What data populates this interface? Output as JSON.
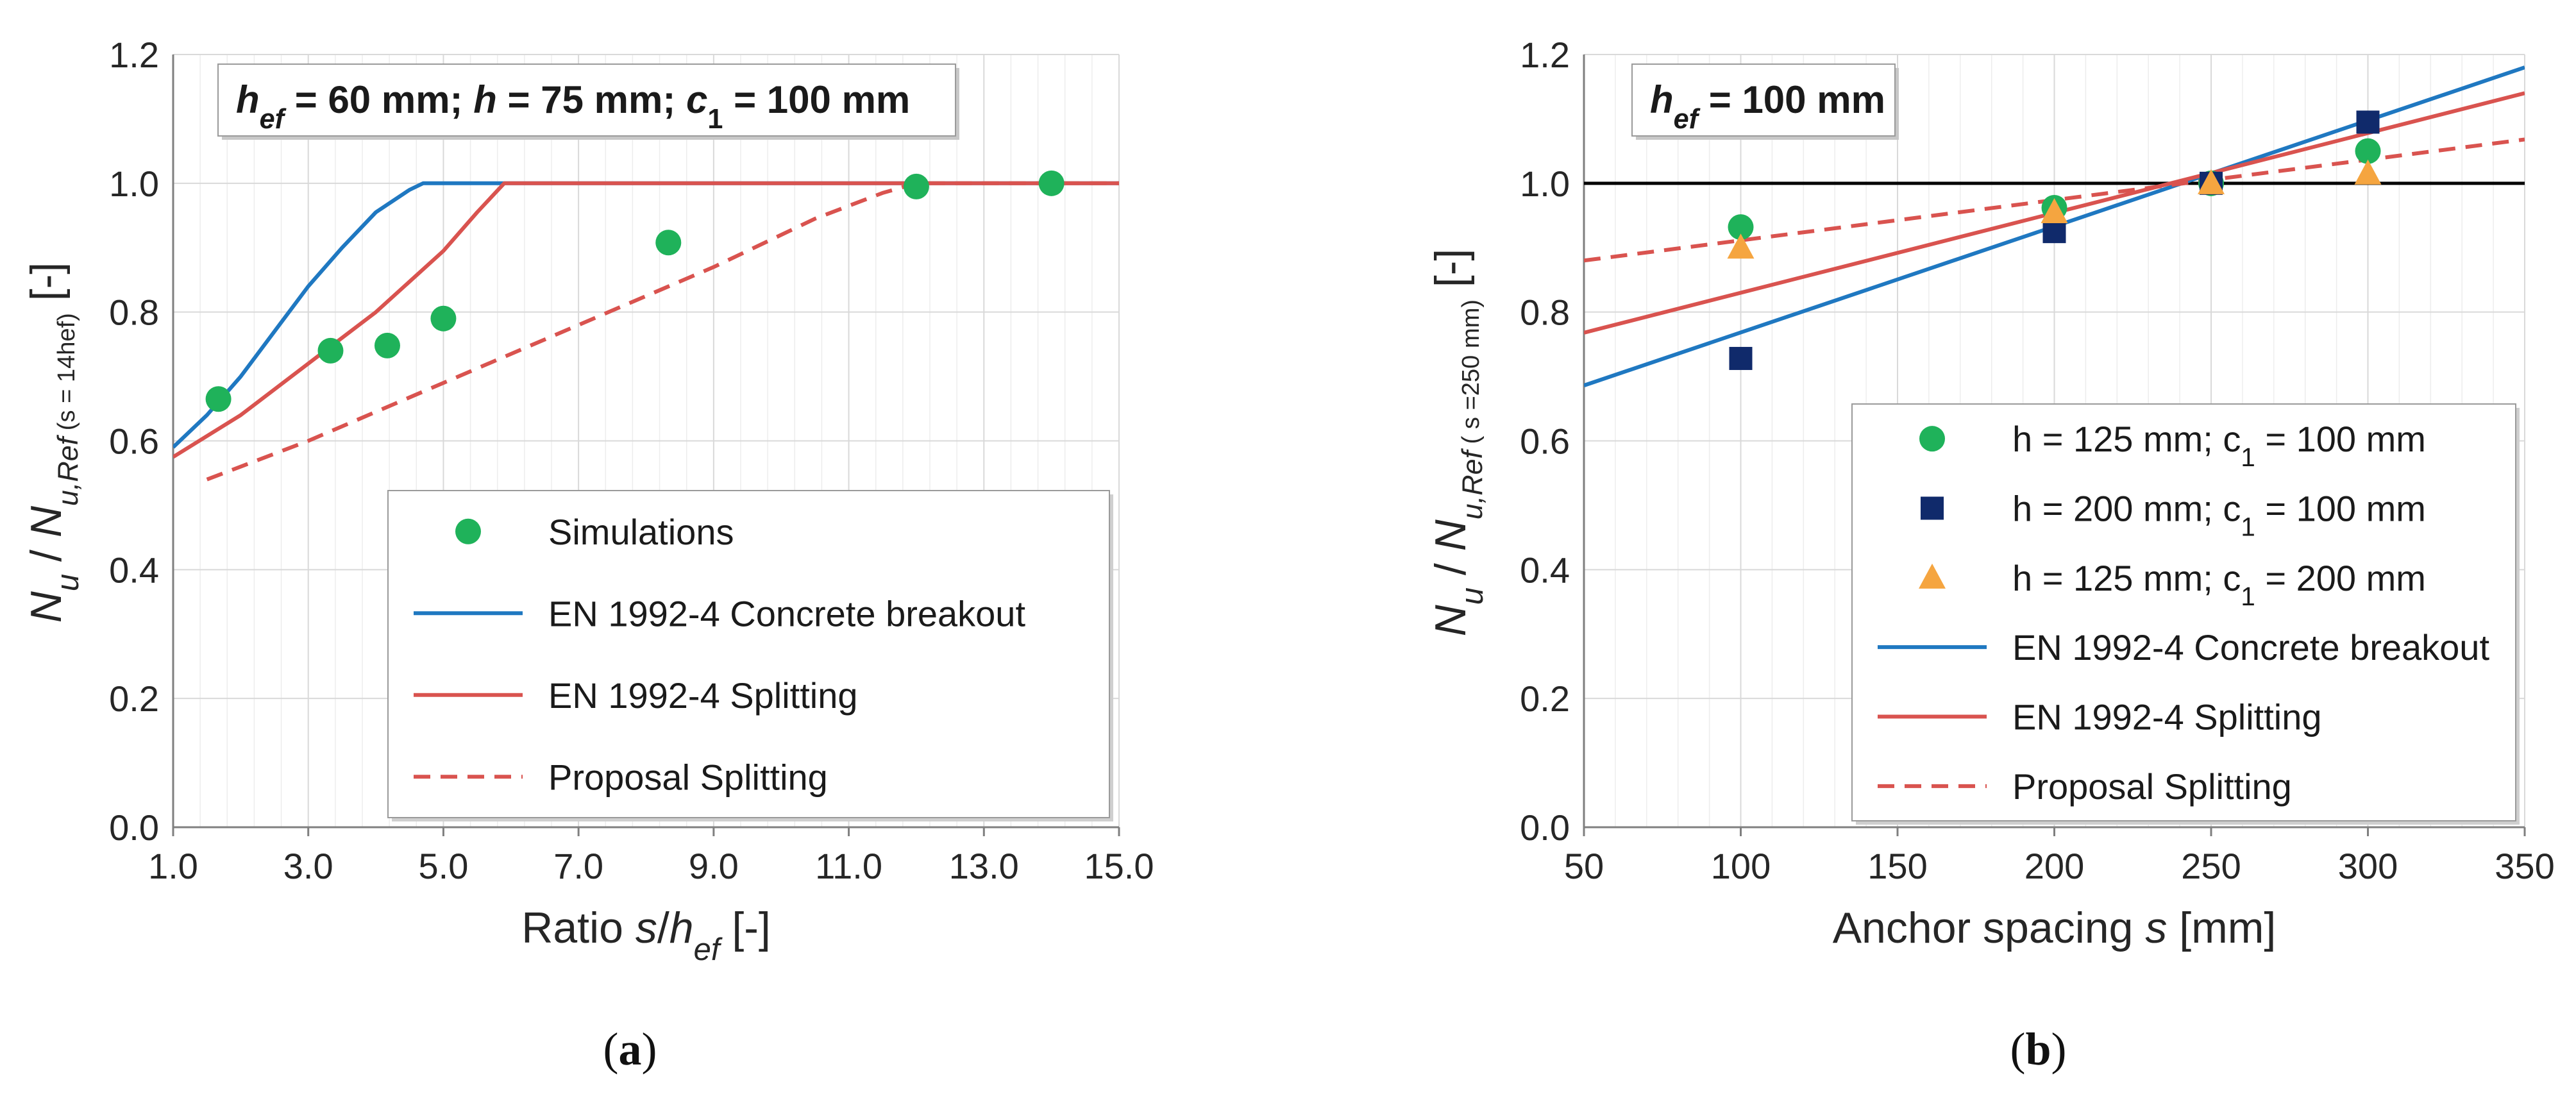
{
  "chart_data": [
    {
      "type": "line",
      "panel_label": "a",
      "annotation": {
        "h1": "h",
        "s1": "ef",
        "t1": " = 60 mm; ",
        "h2": "h",
        "t2": " = 75 mm; ",
        "h3": "c",
        "s3": "1",
        "t3": " = 100 mm"
      },
      "xlabel": {
        "pre": "Ratio ",
        "var": "s",
        "slash": "/",
        "var2": "h",
        "sub": "ef",
        "post": " [-]"
      },
      "ylabel": {
        "n": "N",
        "nsub": "u",
        "mid": " / ",
        "n2": "N",
        "n2sub": "u,Ref",
        "cond": "(s = 14hef)",
        "unit": "[-]"
      },
      "xlim": [
        1.0,
        15.0
      ],
      "ylim": [
        0.0,
        1.2
      ],
      "xticks": [
        "1.0",
        "3.0",
        "5.0",
        "7.0",
        "9.0",
        "11.0",
        "13.0",
        "15.0"
      ],
      "yticks": [
        "0.0",
        "0.2",
        "0.4",
        "0.6",
        "0.8",
        "1.0",
        "1.2"
      ],
      "legend_position": "bottom-right",
      "series": [
        {
          "name": "Simulations",
          "kind": "marker",
          "marker": "circle",
          "color": "#1fb25a",
          "points": [
            [
              1.67,
              0.665
            ],
            [
              3.33,
              0.74
            ],
            [
              4.17,
              0.748
            ],
            [
              5.0,
              0.79
            ],
            [
              8.33,
              0.908
            ],
            [
              12.0,
              0.995
            ],
            [
              14.0,
              1.0
            ]
          ]
        },
        {
          "name": "EN 1992-4 Concrete breakout",
          "kind": "line",
          "style": "solid",
          "color": "#1f78c1",
          "points": [
            [
              1.0,
              0.59
            ],
            [
              1.5,
              0.64
            ],
            [
              2.0,
              0.7
            ],
            [
              2.5,
              0.77
            ],
            [
              3.0,
              0.84
            ],
            [
              3.5,
              0.9
            ],
            [
              4.0,
              0.955
            ],
            [
              4.5,
              0.99
            ],
            [
              4.7,
              1.0
            ],
            [
              15.0,
              1.0
            ]
          ]
        },
        {
          "name": "EN 1992-4 Splitting",
          "kind": "line",
          "style": "solid",
          "color": "#d9534f",
          "points": [
            [
              1.0,
              0.575
            ],
            [
              2.0,
              0.64
            ],
            [
              3.0,
              0.72
            ],
            [
              4.0,
              0.8
            ],
            [
              5.0,
              0.895
            ],
            [
              5.5,
              0.955
            ],
            [
              5.9,
              1.0
            ],
            [
              15.0,
              1.0
            ]
          ]
        },
        {
          "name": "Proposal Splitting",
          "kind": "line",
          "style": "dashed",
          "color": "#d9534f",
          "points": [
            [
              1.5,
              0.54
            ],
            [
              3.0,
              0.6
            ],
            [
              5.0,
              0.69
            ],
            [
              7.0,
              0.78
            ],
            [
              9.0,
              0.87
            ],
            [
              10.5,
              0.945
            ],
            [
              11.5,
              0.985
            ],
            [
              12.0,
              1.0
            ],
            [
              15.0,
              1.0
            ]
          ]
        }
      ]
    },
    {
      "type": "line",
      "panel_label": "b",
      "annotation": {
        "h1": "h",
        "s1": "ef",
        "t1": " = 100 mm"
      },
      "xlabel": {
        "pre": "Anchor spacing ",
        "var": "s",
        "post": " [mm]"
      },
      "ylabel": {
        "n": "N",
        "nsub": "u",
        "mid": " / ",
        "n2": "N",
        "n2sub": "u,Ref",
        "cond": "( s =250 mm)",
        "unit": "[-]"
      },
      "xlim": [
        50,
        350
      ],
      "ylim": [
        0.0,
        1.2
      ],
      "xticks": [
        "50",
        "100",
        "150",
        "200",
        "250",
        "300",
        "350"
      ],
      "yticks": [
        "0.0",
        "0.2",
        "0.4",
        "0.6",
        "0.8",
        "1.0",
        "1.2"
      ],
      "reference_line": {
        "y": 1.0,
        "color": "#000000"
      },
      "legend_position": "bottom-right",
      "series": [
        {
          "name": "h = 125 mm; c1 = 100 mm",
          "label_pre": "h = 125 mm; c",
          "label_sub": "1",
          "label_post": " = 100 mm",
          "kind": "marker",
          "marker": "circle",
          "color": "#1fb25a",
          "points": [
            [
              100,
              0.932
            ],
            [
              200,
              0.962
            ],
            [
              250,
              1.0
            ],
            [
              300,
              1.05
            ]
          ]
        },
        {
          "name": "h = 200 mm; c1 = 100 mm",
          "label_pre": "h = 200 mm; c",
          "label_sub": "1",
          "label_post": " = 100 mm",
          "kind": "marker",
          "marker": "square",
          "color": "#102a6b",
          "points": [
            [
              100,
              0.728
            ],
            [
              200,
              0.925
            ],
            [
              250,
              1.0
            ],
            [
              300,
              1.095
            ]
          ]
        },
        {
          "name": "h = 125 mm; c1 = 200 mm",
          "label_pre": "h = 125 mm; c",
          "label_sub": "1",
          "label_post": " = 200 mm",
          "kind": "marker",
          "marker": "triangle",
          "color": "#f5a540",
          "points": [
            [
              100,
              0.9
            ],
            [
              200,
              0.955
            ],
            [
              250,
              1.0
            ],
            [
              300,
              1.015
            ]
          ]
        },
        {
          "name": "EN 1992-4 Concrete breakout",
          "kind": "line",
          "style": "solid",
          "color": "#1f78c1",
          "points": [
            [
              50,
              0.686
            ],
            [
              350,
              1.18
            ]
          ]
        },
        {
          "name": "EN 1992-4 Splitting",
          "kind": "line",
          "style": "solid",
          "color": "#d9534f",
          "points": [
            [
              50,
              0.768
            ],
            [
              350,
              1.14
            ]
          ]
        },
        {
          "name": "Proposal Splitting",
          "kind": "line",
          "style": "dashed",
          "color": "#d9534f",
          "points": [
            [
              50,
              0.88
            ],
            [
              350,
              1.068
            ]
          ]
        }
      ]
    }
  ]
}
